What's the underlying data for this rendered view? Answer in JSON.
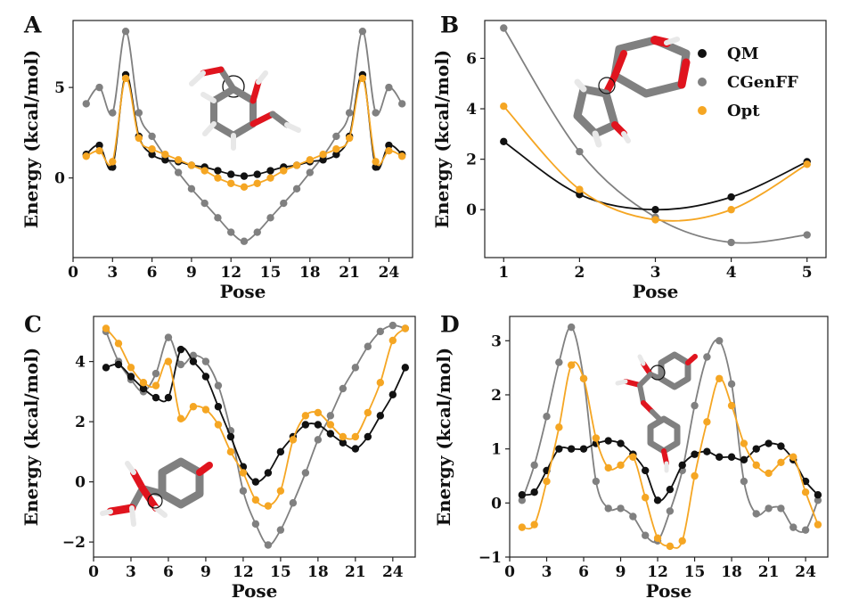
{
  "colors": {
    "QM": "#111111",
    "CGenFF": "#808080",
    "Opt": "#f5a623",
    "oxygen": "#e0141e",
    "carbon": "#7f7f7f",
    "hydrogen": "#e8e8e8"
  },
  "chart_data": [
    {
      "panel": "A",
      "type": "line",
      "xlabel": "Pose",
      "ylabel": "Energy (kcal/mol)",
      "xlim": [
        0,
        25.8
      ],
      "ylim": [
        -4.4,
        8.7
      ],
      "xticks": [
        0,
        3,
        6,
        9,
        12,
        15,
        18,
        21,
        24
      ],
      "yticks": [
        0,
        5
      ],
      "xtick_labels": [
        "0",
        "3",
        "6",
        "9",
        "12",
        "15",
        "18",
        "21",
        "24"
      ],
      "ytick_labels": [
        "0",
        "5"
      ],
      "x": [
        1,
        2,
        3,
        4,
        5,
        6,
        7,
        8,
        9,
        10,
        11,
        12,
        13,
        14,
        15,
        16,
        17,
        18,
        19,
        20,
        21,
        22,
        23,
        24,
        25
      ],
      "series": [
        {
          "name": "QM",
          "values": [
            1.3,
            1.8,
            0.6,
            5.7,
            2.3,
            1.3,
            1.0,
            0.9,
            0.7,
            0.6,
            0.4,
            0.2,
            0.1,
            0.2,
            0.4,
            0.6,
            0.7,
            0.9,
            1.0,
            1.3,
            2.3,
            5.7,
            0.6,
            1.8,
            1.3
          ]
        },
        {
          "name": "CGenFF",
          "values": [
            4.1,
            5.0,
            3.6,
            8.1,
            3.6,
            2.3,
            1.2,
            0.3,
            -0.6,
            -1.4,
            -2.2,
            -3.0,
            -3.5,
            -3.0,
            -2.2,
            -1.4,
            -0.6,
            0.3,
            1.2,
            2.3,
            3.6,
            8.1,
            3.6,
            5.0,
            4.1
          ]
        },
        {
          "name": "Opt",
          "values": [
            1.2,
            1.5,
            0.9,
            5.5,
            2.2,
            1.6,
            1.3,
            1.0,
            0.7,
            0.4,
            0.0,
            -0.3,
            -0.5,
            -0.3,
            0.0,
            0.4,
            0.7,
            1.0,
            1.3,
            1.6,
            2.2,
            5.5,
            0.9,
            1.5,
            1.2
          ]
        }
      ]
    },
    {
      "panel": "B",
      "type": "line",
      "xlabel": "Pose",
      "ylabel": "Energy (kcal/mol)",
      "xlim": [
        0.75,
        5.25
      ],
      "ylim": [
        -1.9,
        7.5
      ],
      "xticks": [
        1,
        2,
        3,
        4,
        5
      ],
      "yticks": [
        0,
        2,
        4,
        6
      ],
      "xtick_labels": [
        "1",
        "2",
        "3",
        "4",
        "5"
      ],
      "ytick_labels": [
        "0",
        "2",
        "4",
        "6"
      ],
      "x": [
        1,
        2,
        3,
        4,
        5
      ],
      "series": [
        {
          "name": "QM",
          "values": [
            2.7,
            0.6,
            0.0,
            0.5,
            1.9
          ]
        },
        {
          "name": "CGenFF",
          "values": [
            7.2,
            2.3,
            -0.3,
            -1.3,
            -1.0
          ]
        },
        {
          "name": "Opt",
          "values": [
            4.1,
            0.8,
            -0.4,
            0.0,
            1.8
          ]
        }
      ],
      "legend": {
        "entries": [
          "QM",
          "CGenFF",
          "Opt"
        ],
        "placement": "top-right"
      }
    },
    {
      "panel": "C",
      "type": "line",
      "xlabel": "Pose",
      "ylabel": "Energy (kcal/mol)",
      "xlim": [
        0,
        25.8
      ],
      "ylim": [
        -2.5,
        5.5
      ],
      "xticks": [
        0,
        3,
        6,
        9,
        12,
        15,
        18,
        21,
        24
      ],
      "yticks": [
        -2,
        0,
        2,
        4
      ],
      "xtick_labels": [
        "0",
        "3",
        "6",
        "9",
        "12",
        "15",
        "18",
        "21",
        "24"
      ],
      "ytick_labels": [
        "−2",
        "0",
        "2",
        "4"
      ],
      "x": [
        1,
        2,
        3,
        4,
        5,
        6,
        7,
        8,
        9,
        10,
        11,
        12,
        13,
        14,
        15,
        16,
        17,
        18,
        19,
        20,
        21,
        22,
        23,
        24,
        25
      ],
      "series": [
        {
          "name": "QM",
          "values": [
            3.8,
            3.9,
            3.5,
            3.1,
            2.8,
            2.8,
            4.4,
            4.0,
            3.5,
            2.5,
            1.5,
            0.5,
            0.0,
            0.3,
            1.0,
            1.5,
            1.9,
            1.9,
            1.6,
            1.3,
            1.1,
            1.5,
            2.2,
            2.9,
            3.8
          ]
        },
        {
          "name": "CGenFF",
          "values": [
            5.0,
            4.0,
            3.4,
            3.0,
            3.6,
            4.8,
            3.9,
            4.2,
            4.0,
            3.2,
            1.7,
            -0.3,
            -1.4,
            -2.1,
            -1.6,
            -0.7,
            0.3,
            1.4,
            2.2,
            3.1,
            3.8,
            4.5,
            5.0,
            5.2,
            5.1
          ]
        },
        {
          "name": "Opt",
          "values": [
            5.1,
            4.6,
            3.8,
            3.3,
            3.2,
            4.0,
            2.1,
            2.5,
            2.4,
            1.9,
            1.0,
            0.3,
            -0.6,
            -0.8,
            -0.3,
            1.4,
            2.2,
            2.3,
            1.9,
            1.5,
            1.5,
            2.3,
            3.3,
            4.7,
            5.1
          ]
        }
      ]
    },
    {
      "panel": "D",
      "type": "line",
      "xlabel": "Pose",
      "ylabel": "Energy (kcal/mol)",
      "xlim": [
        0,
        25.8
      ],
      "ylim": [
        -1.0,
        3.45
      ],
      "xticks": [
        0,
        3,
        6,
        9,
        12,
        15,
        18,
        21,
        24
      ],
      "yticks": [
        -1,
        0,
        1,
        2,
        3
      ],
      "xtick_labels": [
        "0",
        "3",
        "6",
        "9",
        "12",
        "15",
        "18",
        "21",
        "24"
      ],
      "ytick_labels": [
        "−1",
        "0",
        "1",
        "2",
        "3"
      ],
      "x": [
        1,
        2,
        3,
        4,
        5,
        6,
        7,
        8,
        9,
        10,
        11,
        12,
        13,
        14,
        15,
        16,
        17,
        18,
        19,
        20,
        21,
        22,
        23,
        24,
        25
      ],
      "series": [
        {
          "name": "QM",
          "values": [
            0.15,
            0.2,
            0.6,
            1.0,
            1.0,
            1.0,
            1.1,
            1.15,
            1.1,
            0.9,
            0.6,
            0.05,
            0.25,
            0.7,
            0.9,
            0.95,
            0.85,
            0.85,
            0.8,
            1.0,
            1.1,
            1.05,
            0.8,
            0.4,
            0.15
          ]
        },
        {
          "name": "CGenFF",
          "values": [
            0.05,
            0.7,
            1.6,
            2.6,
            3.25,
            2.3,
            0.4,
            -0.1,
            -0.1,
            -0.25,
            -0.6,
            -0.7,
            -0.15,
            0.6,
            1.8,
            2.7,
            3.0,
            2.2,
            0.4,
            -0.2,
            -0.1,
            -0.1,
            -0.45,
            -0.5,
            0.05
          ]
        },
        {
          "name": "Opt",
          "values": [
            -0.45,
            -0.4,
            0.4,
            1.4,
            2.55,
            2.3,
            1.2,
            0.65,
            0.7,
            0.85,
            0.1,
            -0.65,
            -0.8,
            -0.7,
            0.5,
            1.5,
            2.3,
            1.8,
            1.1,
            0.7,
            0.55,
            0.75,
            0.85,
            0.2,
            -0.4
          ]
        }
      ]
    }
  ]
}
